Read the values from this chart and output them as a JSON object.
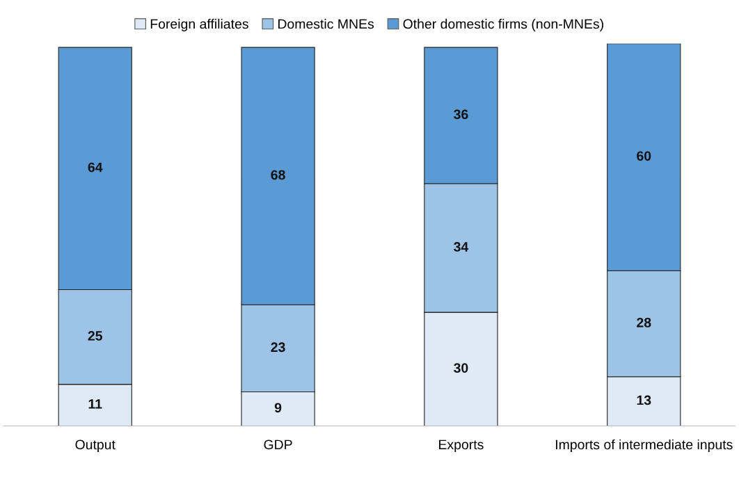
{
  "chart_data": {
    "type": "bar",
    "stacked": true,
    "categories": [
      "Output",
      "GDP",
      "Exports",
      "Imports of intermediate inputs"
    ],
    "series": [
      {
        "name": "Foreign affiliates",
        "color": "#deeaf6",
        "values": [
          11,
          9,
          30,
          13
        ]
      },
      {
        "name": "Domestic MNEs",
        "color": "#9dc3e6",
        "values": [
          25,
          23,
          34,
          28
        ]
      },
      {
        "name": "Other domestic firms (non-MNEs)",
        "color": "#5b9bd5",
        "values": [
          64,
          68,
          36,
          60
        ]
      }
    ],
    "ylim": [
      0,
      101
    ],
    "tick_labels": "x",
    "data_labels": true,
    "legend": "top",
    "grid": false
  }
}
